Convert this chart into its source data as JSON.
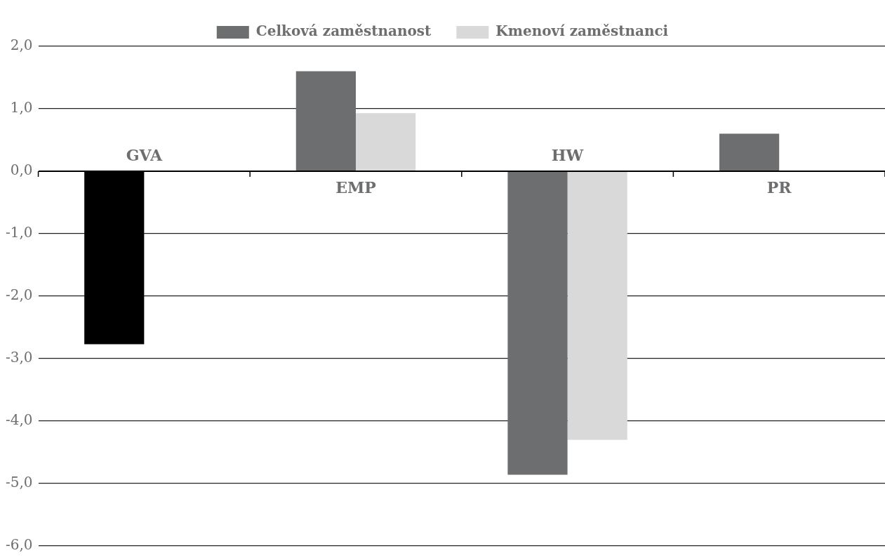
{
  "chart_data": {
    "type": "bar",
    "categories": [
      "GVA",
      "EMP",
      "HW",
      "PR"
    ],
    "series": [
      {
        "name": "Celková zaměstnanost",
        "color": "#6d6e70",
        "colors": [
          "#000000",
          "#6d6e70",
          "#6d6e70",
          "#6d6e70"
        ],
        "values": [
          -2.77,
          1.6,
          -4.86,
          0.6
        ]
      },
      {
        "name": "Kmenoví zaměstnanci",
        "color": "#d9d9da",
        "values": [
          null,
          0.93,
          -4.3,
          null
        ]
      }
    ],
    "ylim": [
      -6,
      2
    ],
    "yticks": [
      {
        "value": -6,
        "label": "-6,0"
      },
      {
        "value": -5,
        "label": "-5,0"
      },
      {
        "value": -4,
        "label": "-4,0"
      },
      {
        "value": -3,
        "label": "-3,0"
      },
      {
        "value": -2,
        "label": "-2,0"
      },
      {
        "value": -1,
        "label": "-1,0"
      },
      {
        "value": 0,
        "label": "0,0"
      },
      {
        "value": 1,
        "label": "1,0"
      },
      {
        "value": 2,
        "label": "2,0"
      }
    ],
    "grid": "y",
    "legend": "top"
  }
}
